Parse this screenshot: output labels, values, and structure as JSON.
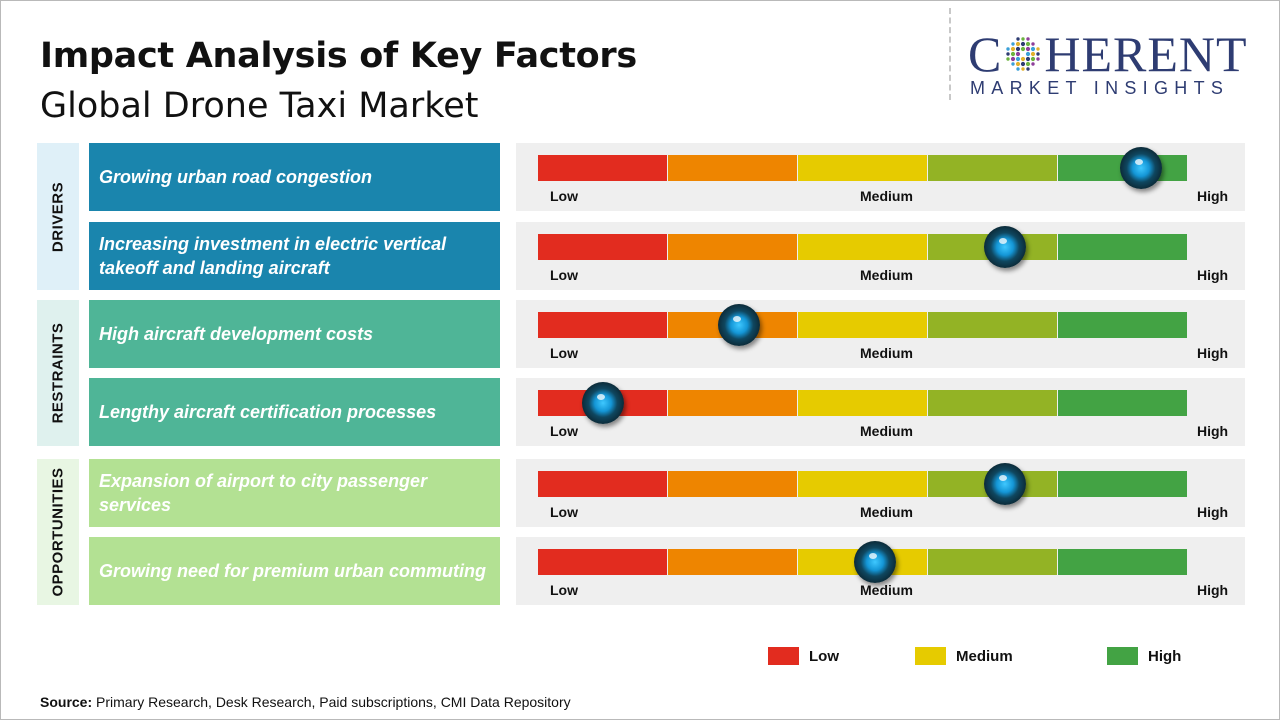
{
  "title": "Impact Analysis of Key Factors",
  "subtitle": "Global Drone Taxi Market",
  "logo": {
    "word_left": "C",
    "word_right": "HERENT",
    "sub": "MARKET INSIGHTS",
    "icon": "dot-grid-o-icon"
  },
  "scale_labels": {
    "low": "Low",
    "medium": "Medium",
    "high": "High"
  },
  "colors": {
    "low": "#e22c1f",
    "low_mid": "#ee8500",
    "medium": "#e6cb00",
    "mid_high": "#93b325",
    "high": "#43a344",
    "drivers_tab": "#dff0f8",
    "drivers_box": "#1a85ad",
    "restraints_tab": "#dff1ee",
    "restraints_box": "#4fb597",
    "opportunities_tab": "#e8f6e3",
    "opportunities_box": "#b3e193"
  },
  "groups": [
    {
      "name": "DRIVERS"
    },
    {
      "name": "RESTRAINTS"
    },
    {
      "name": "OPPORTUNITIES"
    }
  ],
  "chart_data": {
    "type": "table",
    "scale": [
      "Low",
      "Medium",
      "High"
    ],
    "rows": [
      {
        "group": "DRIVERS",
        "factor": "Growing urban road congestion",
        "impact": 0.93
      },
      {
        "group": "DRIVERS",
        "factor": "Increasing investment in electric vertical takeoff and landing aircraft",
        "impact": 0.72
      },
      {
        "group": "RESTRAINTS",
        "factor": "High aircraft development costs",
        "impact": 0.31
      },
      {
        "group": "RESTRAINTS",
        "factor": "Lengthy aircraft certification processes",
        "impact": 0.1
      },
      {
        "group": "OPPORTUNITIES",
        "factor": "Expansion of airport to city passenger services",
        "impact": 0.72
      },
      {
        "group": "OPPORTUNITIES",
        "factor": "Growing need for premium urban commuting",
        "impact": 0.52
      }
    ]
  },
  "legend": [
    {
      "label": "Low",
      "color": "#e22c1f"
    },
    {
      "label": "Medium",
      "color": "#e6cb00"
    },
    {
      "label": "High",
      "color": "#43a344"
    }
  ],
  "source": {
    "label": "Source:",
    "text": " Primary Research, Desk Research, Paid subscriptions, CMI Data Repository"
  }
}
